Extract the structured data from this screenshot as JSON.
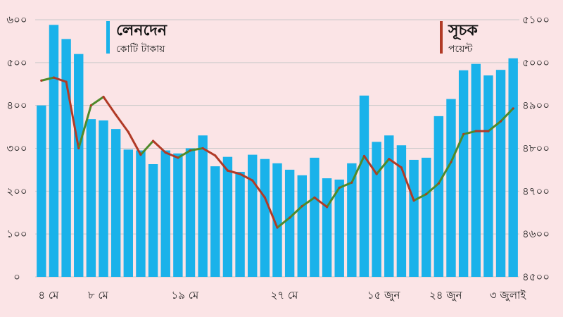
{
  "chart_data": {
    "type": "bar",
    "x_tick_labels": [
      "৪ মে",
      "৮ মে",
      "১৯ মে",
      "২৭ মে",
      "১৫ জুন",
      "২৪ জুন",
      "৩ জুলাই"
    ],
    "y_left": {
      "ticks": [
        "০",
        "১০০",
        "২০০",
        "৩০০",
        "৪০০",
        "৫০০",
        "৬০০"
      ],
      "range": [
        0,
        600
      ]
    },
    "y_right": {
      "ticks": [
        "৪৫০০",
        "৪৬০০",
        "৪৭০০",
        "৪৮০০",
        "৪৯০০",
        "৫০০০",
        "৫১০০"
      ],
      "range": [
        4500,
        5100
      ]
    },
    "legend": {
      "bar_title": "লেনদেন",
      "bar_unit": "কোটি টাকায়",
      "line_title": "সূচক",
      "line_unit": "পয়েন্ট"
    },
    "colors": {
      "bar": "#1ab2ea",
      "line": "#b13a26",
      "line_rising": "#4f8a2a",
      "background": "#fbe4e6",
      "grid": "#c9c9c9"
    },
    "series": [
      {
        "type": "bar",
        "axis": "left",
        "values": [
          400,
          588,
          555,
          520,
          368,
          365,
          345,
          297,
          295,
          263,
          295,
          288,
          300,
          330,
          258,
          280,
          245,
          285,
          275,
          265,
          250,
          237,
          278,
          230,
          227,
          265,
          423,
          315,
          330,
          307,
          273,
          278,
          375,
          415,
          482,
          497,
          470,
          483,
          510
        ]
      },
      {
        "type": "line",
        "axis": "right",
        "values": [
          4958,
          4965,
          4955,
          4800,
          4900,
          4920,
          4878,
          4838,
          4785,
          4817,
          4790,
          4778,
          4795,
          4800,
          4783,
          4748,
          4740,
          4725,
          4685,
          4615,
          4638,
          4665,
          4685,
          4663,
          4708,
          4720,
          4782,
          4740,
          4775,
          4755,
          4678,
          4693,
          4718,
          4768,
          4833,
          4840,
          4840,
          4863,
          4893
        ]
      }
    ]
  }
}
